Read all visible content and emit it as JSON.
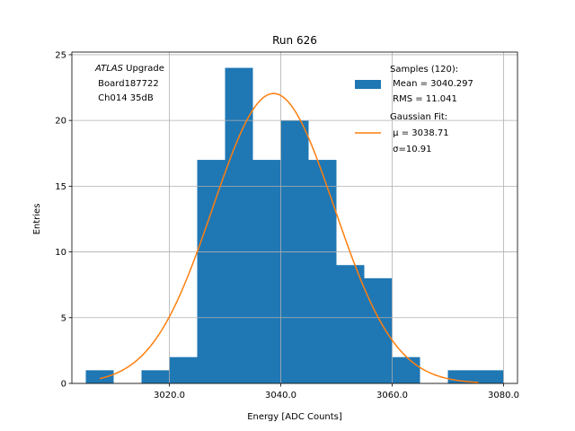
{
  "chart_data": {
    "type": "bar",
    "title": "Run 626",
    "xlabel": "Energy [ADC Counts]",
    "ylabel": "Entries",
    "xlim": [
      3002.5,
      3082.5
    ],
    "ylim": [
      0,
      25.2
    ],
    "xticks": [
      3020.0,
      3040.0,
      3060.0,
      3080.0
    ],
    "xtick_labels": [
      "3020.0",
      "3040.0",
      "3060.0",
      "3080.0"
    ],
    "yticks": [
      0,
      5,
      10,
      15,
      20,
      25
    ],
    "ytick_labels": [
      "0",
      "5",
      "10",
      "15",
      "20",
      "25"
    ],
    "grid": true,
    "bar_color": "#1f77b4",
    "fit_color": "#ff7f0e",
    "histogram": {
      "bin_edges": [
        3005,
        3010,
        3015,
        3020,
        3025,
        3030,
        3035,
        3040,
        3045,
        3050,
        3055,
        3060,
        3065,
        3070,
        3075,
        3080
      ],
      "counts": [
        1,
        0,
        1,
        2,
        17,
        24,
        17,
        20,
        17,
        9,
        8,
        2,
        0,
        1,
        1
      ]
    },
    "gaussian_fit": {
      "amplitude": 22.05,
      "mu": 3038.71,
      "sigma": 10.91,
      "x_range": [
        3007.5,
        3075.5
      ]
    },
    "annotation": {
      "italic": "ATLAS",
      "line1_rest": " Upgrade",
      "line2": " Board187722",
      "line3": " Ch014 35dB"
    },
    "legend": {
      "position": "upper right",
      "samples_line1": "Samples (120):",
      "samples_line2": " Mean = 3040.297",
      "samples_line3": " RMS = 11.041",
      "fit_line1": "Gaussian Fit:",
      "fit_line2": " μ = 3038.71",
      "fit_line3": " σ=10.91"
    }
  }
}
